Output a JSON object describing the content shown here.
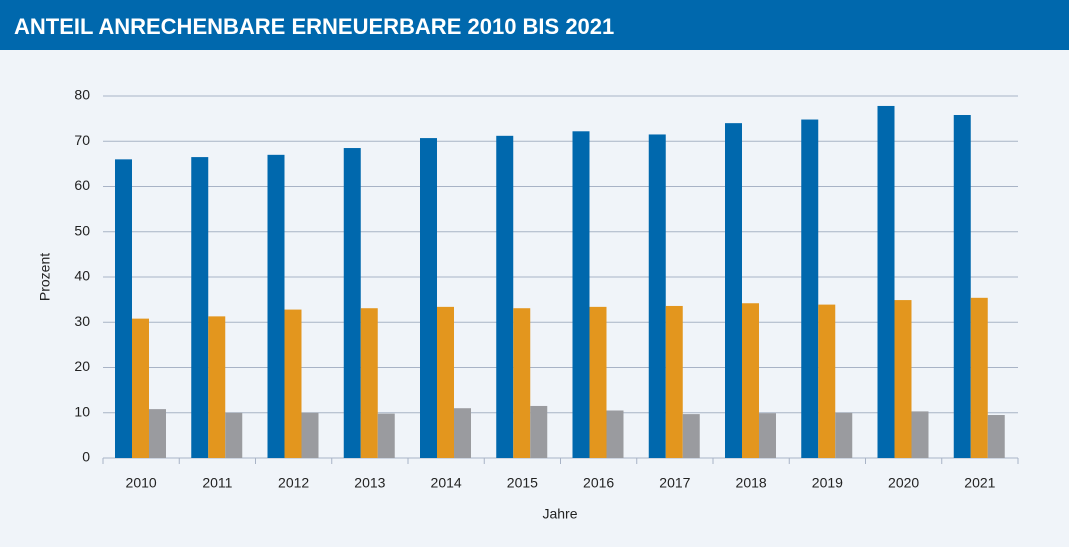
{
  "chart_data": {
    "type": "bar",
    "title": "ANTEIL ANRECHENBARE ERNEUERBARE 2010 BIS 2021",
    "xlabel": "Jahre",
    "ylabel": "Prozent",
    "categories": [
      "2010",
      "2011",
      "2012",
      "2013",
      "2014",
      "2015",
      "2016",
      "2017",
      "2018",
      "2019",
      "2020",
      "2021"
    ],
    "series": [
      {
        "color": "#0068ad",
        "values": [
          66,
          66.5,
          67,
          68.5,
          70.7,
          71.2,
          72.2,
          71.5,
          74,
          74.8,
          77.8,
          75.8
        ]
      },
      {
        "color": "#e3961e",
        "values": [
          30.8,
          31.3,
          32.8,
          33.1,
          33.4,
          33.1,
          33.4,
          33.6,
          34.2,
          33.9,
          34.9,
          35.4
        ]
      },
      {
        "color": "#9a9b9f",
        "values": [
          10.8,
          10,
          10,
          9.8,
          11,
          11.5,
          10.5,
          9.7,
          9.9,
          10,
          10.3,
          9.5
        ]
      }
    ],
    "ylim": [
      0,
      80
    ],
    "yticks": [
      0,
      10,
      20,
      30,
      40,
      50,
      60,
      70,
      80
    ],
    "grid": true
  }
}
